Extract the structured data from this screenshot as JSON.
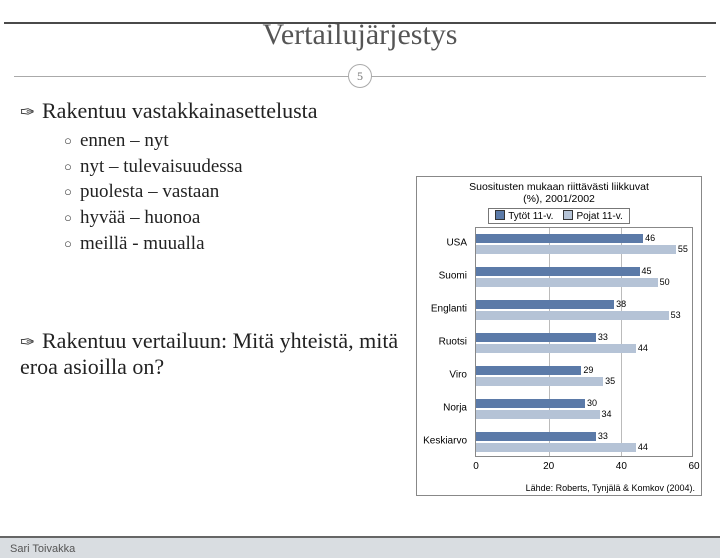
{
  "title": "Vertailujärjestys",
  "page_number": "5",
  "bullet1": "Rakentuu vastakkainasettelusta",
  "subitems": [
    "ennen – nyt",
    "nyt – tulevaisuudessa",
    "puolesta – vastaan",
    "hyvää – huonoa",
    "meillä -  muualla"
  ],
  "bullet2": "Rakentuu vertailuun: Mitä yhteistä, mitä eroa asioilla on?",
  "footer": "Sari Toivakka",
  "chart": {
    "title_line1": "Suositusten mukaan riittävästi liikkuvat",
    "title_line2": "(%), 2001/2002",
    "legend": [
      {
        "label": "Tytöt 11-v.",
        "color": "#5b7aa8"
      },
      {
        "label": "Pojat 11-v.",
        "color": "#b5c3d6"
      }
    ],
    "xmax": 60,
    "xticks": [
      0,
      20,
      40,
      60
    ],
    "categories": [
      "USA",
      "Suomi",
      "Englanti",
      "Ruotsi",
      "Viro",
      "Norja",
      "Keskiarvo"
    ],
    "series1": [
      46,
      45,
      38,
      33,
      29,
      30,
      33
    ],
    "series2": [
      55,
      50,
      53,
      44,
      35,
      34,
      44
    ],
    "colors": {
      "s1": "#5b7aa8",
      "s2": "#b5c3d6"
    },
    "source": "Lähde: Roberts, Tynjälä & Komkov (2004)."
  }
}
